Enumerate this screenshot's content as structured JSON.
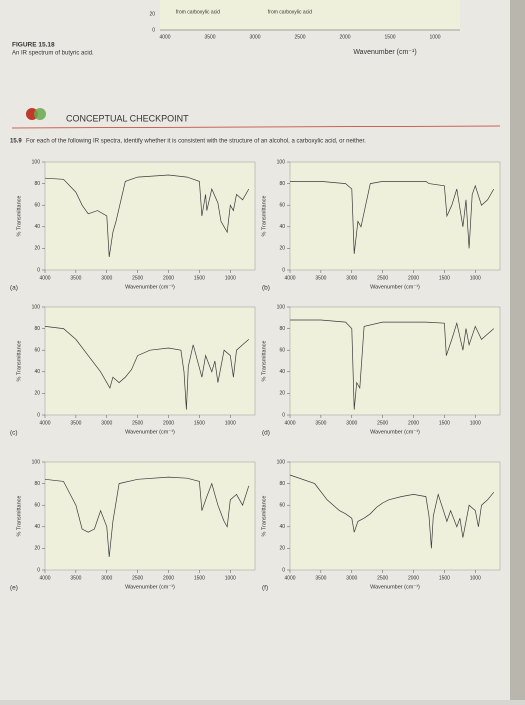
{
  "header": {
    "figure": "FIGURE 15.18",
    "caption": "An IR spectrum of butyric acid.",
    "fragment": {
      "labels": [
        "from carboxylic acid",
        "from carboxylic acid"
      ],
      "yticks": [
        20,
        0
      ],
      "xticks": [
        4000,
        3500,
        3000,
        2500,
        2000,
        1500,
        1000
      ],
      "xlabel": "Wavenumber (cm⁻¹)"
    }
  },
  "checkpoint": {
    "title": "CONCEPTUAL CHECKPOINT",
    "number": "15.9",
    "prompt": "For each of the following IR spectra, identify whether it is consistent with the structure of an alcohol, a carboxylic acid, or neither."
  },
  "chart_data": [
    {
      "type": "line",
      "label": "(a)",
      "xlabel": "Wavenumber (cm⁻¹)",
      "ylabel": "% Transmittance",
      "color": "#3a3a3a",
      "xlim": [
        4000,
        600
      ],
      "ylim": [
        0,
        100
      ],
      "xticks": [
        4000,
        3500,
        3000,
        2500,
        2000,
        1500,
        1000
      ],
      "yticks": [
        0,
        20,
        40,
        60,
        80,
        100
      ],
      "x": [
        4000,
        3700,
        3500,
        3400,
        3300,
        3150,
        3000,
        2960,
        2900,
        2850,
        2700,
        2500,
        2000,
        1700,
        1500,
        1460,
        1400,
        1380,
        1300,
        1200,
        1150,
        1100,
        1050,
        1000,
        950,
        900,
        800,
        700
      ],
      "values": [
        85,
        84,
        72,
        60,
        52,
        55,
        50,
        12,
        35,
        45,
        82,
        86,
        88,
        86,
        82,
        50,
        70,
        55,
        75,
        62,
        45,
        40,
        35,
        60,
        55,
        70,
        65,
        75
      ]
    },
    {
      "type": "line",
      "label": "(b)",
      "xlabel": "Wavenumber (cm⁻¹)",
      "ylabel": "% Transmittance",
      "color": "#3a3a3a",
      "xlim": [
        4000,
        600
      ],
      "ylim": [
        0,
        100
      ],
      "xticks": [
        4000,
        3500,
        3000,
        2500,
        2000,
        1500,
        1000
      ],
      "yticks": [
        0,
        20,
        40,
        60,
        80,
        100
      ],
      "x": [
        4000,
        3500,
        3100,
        3000,
        2960,
        2900,
        2850,
        2700,
        2500,
        2000,
        1800,
        1750,
        1500,
        1460,
        1380,
        1300,
        1200,
        1150,
        1100,
        1050,
        1000,
        900,
        800,
        700
      ],
      "values": [
        82,
        82,
        80,
        75,
        15,
        45,
        40,
        80,
        82,
        82,
        82,
        80,
        78,
        50,
        60,
        75,
        40,
        65,
        20,
        70,
        78,
        60,
        65,
        75
      ]
    },
    {
      "type": "line",
      "label": "(c)",
      "xlabel": "Wavenumber (cm⁻¹)",
      "ylabel": "% Transmittance",
      "color": "#3a3a3a",
      "xlim": [
        4000,
        600
      ],
      "ylim": [
        0,
        100
      ],
      "xticks": [
        4000,
        3500,
        3000,
        2500,
        2000,
        1500,
        1000
      ],
      "yticks": [
        0,
        20,
        40,
        60,
        80,
        100
      ],
      "x": [
        4000,
        3700,
        3500,
        3300,
        3100,
        3000,
        2950,
        2900,
        2800,
        2700,
        2600,
        2500,
        2300,
        2000,
        1800,
        1750,
        1710,
        1680,
        1600,
        1460,
        1400,
        1300,
        1250,
        1200,
        1100,
        1000,
        950,
        900,
        800,
        700
      ],
      "values": [
        82,
        80,
        70,
        55,
        40,
        30,
        25,
        35,
        30,
        35,
        42,
        55,
        60,
        62,
        60,
        40,
        5,
        45,
        65,
        35,
        55,
        40,
        50,
        30,
        60,
        55,
        35,
        60,
        65,
        70
      ]
    },
    {
      "type": "line",
      "label": "(d)",
      "xlabel": "Wavenumber (cm⁻¹)",
      "ylabel": "% Transmittance",
      "color": "#3a3a3a",
      "xlim": [
        4000,
        600
      ],
      "ylim": [
        0,
        100
      ],
      "xticks": [
        4000,
        3500,
        3000,
        2500,
        2000,
        1500,
        1000
      ],
      "yticks": [
        0,
        20,
        40,
        60,
        80,
        100
      ],
      "x": [
        4000,
        3500,
        3100,
        3000,
        2960,
        2920,
        2870,
        2800,
        2500,
        2000,
        1800,
        1500,
        1470,
        1380,
        1300,
        1200,
        1150,
        1100,
        1000,
        900,
        800,
        700
      ],
      "values": [
        88,
        88,
        86,
        80,
        5,
        30,
        25,
        82,
        86,
        86,
        86,
        85,
        55,
        70,
        85,
        60,
        80,
        65,
        82,
        70,
        75,
        80
      ]
    },
    {
      "type": "line",
      "label": "(e)",
      "xlabel": "Wavenumber (cm⁻¹)",
      "ylabel": "% Transmittance",
      "color": "#3a3a3a",
      "xlim": [
        4000,
        600
      ],
      "ylim": [
        0,
        100
      ],
      "xticks": [
        4000,
        3500,
        3000,
        2500,
        2000,
        1500,
        1000
      ],
      "yticks": [
        0,
        20,
        40,
        60,
        80,
        100
      ],
      "x": [
        4000,
        3700,
        3500,
        3400,
        3300,
        3200,
        3100,
        3000,
        2960,
        2900,
        2800,
        2500,
        2000,
        1700,
        1500,
        1460,
        1380,
        1300,
        1200,
        1100,
        1050,
        1000,
        900,
        800,
        700
      ],
      "values": [
        84,
        82,
        60,
        38,
        35,
        38,
        55,
        40,
        12,
        45,
        80,
        84,
        86,
        85,
        82,
        55,
        68,
        80,
        60,
        45,
        40,
        65,
        70,
        60,
        78
      ]
    },
    {
      "type": "line",
      "label": "(f)",
      "xlabel": "Wavenumber (cm⁻¹)",
      "ylabel": "% Transmittance",
      "color": "#3a3a3a",
      "xlim": [
        4000,
        600
      ],
      "ylim": [
        0,
        100
      ],
      "xticks": [
        4000,
        3500,
        3000,
        2500,
        2000,
        1500,
        1000
      ],
      "yticks": [
        0,
        20,
        40,
        60,
        80,
        100
      ],
      "x": [
        4000,
        3600,
        3400,
        3200,
        3100,
        3000,
        2960,
        2900,
        2800,
        2700,
        2600,
        2500,
        2400,
        2200,
        2000,
        1800,
        1750,
        1710,
        1680,
        1600,
        1460,
        1400,
        1300,
        1250,
        1200,
        1100,
        1000,
        950,
        900,
        800,
        700
      ],
      "values": [
        88,
        80,
        65,
        55,
        52,
        48,
        35,
        45,
        48,
        52,
        58,
        62,
        65,
        68,
        70,
        68,
        50,
        20,
        50,
        70,
        45,
        55,
        40,
        48,
        30,
        60,
        55,
        40,
        60,
        65,
        72
      ]
    }
  ]
}
